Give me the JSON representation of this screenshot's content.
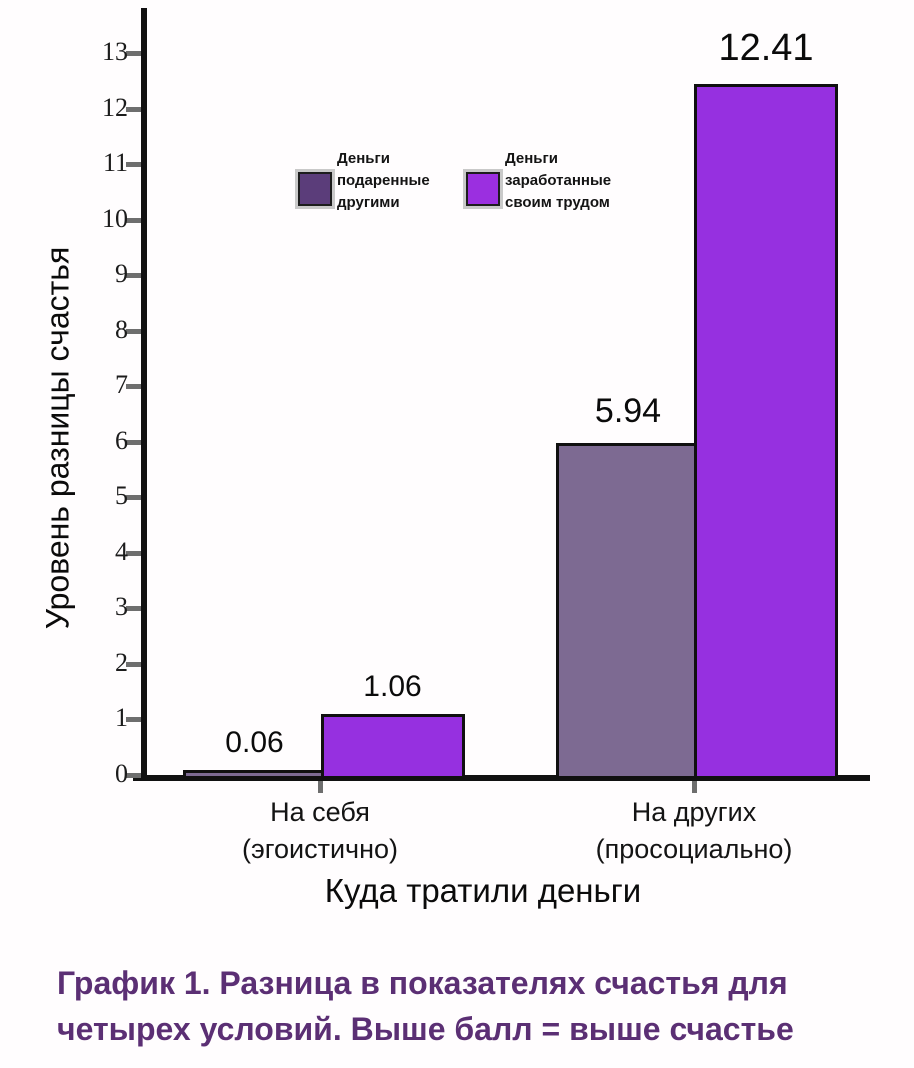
{
  "chart_data": {
    "type": "bar",
    "title": "",
    "xlabel": "Куда тратили деньги",
    "ylabel": "Уровень разницы счастья",
    "categories": [
      "На себя\n(эгоистично)",
      "На других\n(просоциально)"
    ],
    "series": [
      {
        "name": "Деньги подаренные другими",
        "values": [
          0.06,
          5.94
        ],
        "bar_color": "#7d6a92",
        "legend_color": "#5b3d7a"
      },
      {
        "name": "Деньги заработанные своим трудом",
        "values": [
          1.06,
          12.41
        ],
        "bar_color": "#9630e0",
        "legend_color": "#9b2fe0"
      }
    ],
    "value_labels": [
      [
        "0.06",
        "5.94"
      ],
      [
        "1.06",
        "12.41"
      ]
    ],
    "ylim": [
      0,
      13
    ],
    "yticks": [
      0,
      1,
      2,
      3,
      4,
      5,
      6,
      7,
      8,
      9,
      10,
      11,
      12,
      13
    ],
    "grid": false,
    "legend_position": "top-center-inside"
  },
  "legend": {
    "items": [
      {
        "label": "Деньги\nподаренные\nдругими"
      },
      {
        "label": "Деньги\nзаработанные\nсвоим трудом"
      }
    ]
  },
  "caption": {
    "text": "График 1. Разница в показателях счастья для\nчетырех условий. Выше балл = выше счастье",
    "color": "#5b2f74"
  },
  "colors": {
    "axis": "#111111",
    "tick": "#6e6e6e",
    "background": "#fffdfe"
  }
}
